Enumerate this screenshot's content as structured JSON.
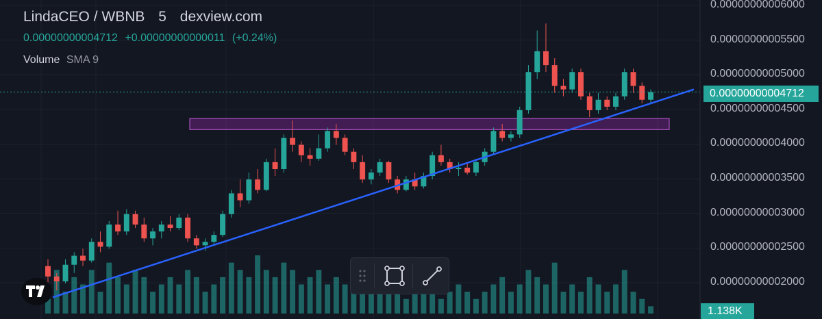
{
  "header": {
    "pair": "LindaCEO / WBNB",
    "interval": "5",
    "source": "dexview.com",
    "last_price": "0.00000000004712",
    "change_abs": "+0.00000000000011",
    "change_pct": "(+0.24%)",
    "indicator_name": "Volume",
    "indicator_param": "SMA 9"
  },
  "price_tag": "0.00000000004712",
  "volume_tag": "1.138K",
  "colors": {
    "background": "#131722",
    "up": "#26a69a",
    "down": "#ef5350",
    "trendline": "#2962ff",
    "zone": "#9c27b0"
  },
  "toolbar": {
    "items": [
      "drag-handle-icon",
      "rectangle-tool-icon",
      "trendline-tool-icon"
    ]
  },
  "chart_data": {
    "type": "candlestick",
    "y_axis_labels": [
      "0.00000000006000",
      "0.00000000005500",
      "0.00000000005000",
      "0.00000000004500",
      "0.00000000004000",
      "0.00000000003500",
      "0.00000000003000",
      "0.00000000002500",
      "0.00000000002000"
    ],
    "ylim": [
      1.8e-11,
      6e-11
    ],
    "last_price": 4.712e-11,
    "grid": true,
    "zone": {
      "low": 4.17e-11,
      "high": 4.33e-11
    },
    "trendline": {
      "from": 1.75e-11,
      "to": 4.75e-11
    },
    "candles": [
      [
        2.2e-11,
        2.3e-11,
        1.95e-11,
        2.05e-11
      ],
      [
        2.05e-11,
        2.1e-11,
        1.85e-11,
        1.98e-11
      ],
      [
        1.98e-11,
        2.3e-11,
        1.95e-11,
        2.22e-11
      ],
      [
        2.22e-11,
        2.4e-11,
        2.1e-11,
        2.35e-11
      ],
      [
        2.35e-11,
        2.45e-11,
        2.2e-11,
        2.28e-11
      ],
      [
        2.28e-11,
        2.6e-11,
        2.25e-11,
        2.55e-11
      ],
      [
        2.55e-11,
        2.7e-11,
        2.4e-11,
        2.48e-11
      ],
      [
        2.48e-11,
        2.85e-11,
        2.45e-11,
        2.8e-11
      ],
      [
        2.8e-11,
        3e-11,
        2.65e-11,
        2.7e-11
      ],
      [
        2.7e-11,
        3.02e-11,
        2.65e-11,
        2.95e-11
      ],
      [
        2.95e-11,
        3e-11,
        2.75e-11,
        2.8e-11
      ],
      [
        2.8e-11,
        2.9e-11,
        2.55e-11,
        2.6e-11
      ],
      [
        2.6e-11,
        2.75e-11,
        2.5e-11,
        2.7e-11
      ],
      [
        2.7e-11,
        2.85e-11,
        2.6e-11,
        2.8e-11
      ],
      [
        2.8e-11,
        2.92e-11,
        2.7e-11,
        2.75e-11
      ],
      [
        2.75e-11,
        2.95e-11,
        2.72e-11,
        2.9e-11
      ],
      [
        2.9e-11,
        2.95e-11,
        2.55e-11,
        2.6e-11
      ],
      [
        2.6e-11,
        2.65e-11,
        2.45e-11,
        2.5e-11
      ],
      [
        2.5e-11,
        2.6e-11,
        2.42e-11,
        2.55e-11
      ],
      [
        2.55e-11,
        2.7e-11,
        2.5e-11,
        2.65e-11
      ],
      [
        2.65e-11,
        3e-11,
        2.62e-11,
        2.95e-11
      ],
      [
        2.95e-11,
        3.3e-11,
        2.9e-11,
        3.25e-11
      ],
      [
        3.25e-11,
        3.45e-11,
        3.05e-11,
        3.15e-11
      ],
      [
        3.15e-11,
        3.55e-11,
        3.1e-11,
        3.45e-11
      ],
      [
        3.45e-11,
        3.6e-11,
        3.25e-11,
        3.3e-11
      ],
      [
        3.3e-11,
        3.75e-11,
        3.28e-11,
        3.7e-11
      ],
      [
        3.7e-11,
        3.9e-11,
        3.5e-11,
        3.6e-11
      ],
      [
        3.6e-11,
        4.1e-11,
        3.55e-11,
        4.05e-11
      ],
      [
        4.05e-11,
        4.3e-11,
        3.85e-11,
        3.95e-11
      ],
      [
        3.95e-11,
        4e-11,
        3.7e-11,
        3.8e-11
      ],
      [
        3.8e-11,
        3.9e-11,
        3.65e-11,
        3.75e-11
      ],
      [
        3.75e-11,
        4.1e-11,
        3.72e-11,
        3.9e-11
      ],
      [
        3.9e-11,
        4.2e-11,
        3.85e-11,
        4.15e-11
      ],
      [
        4.15e-11,
        4.25e-11,
        3.95e-11,
        4.05e-11
      ],
      [
        4.05e-11,
        4.1e-11,
        3.8e-11,
        3.85e-11
      ],
      [
        3.85e-11,
        3.9e-11,
        3.6e-11,
        3.7e-11
      ],
      [
        3.7e-11,
        3.8e-11,
        3.4e-11,
        3.45e-11
      ],
      [
        3.45e-11,
        3.6e-11,
        3.38e-11,
        3.55e-11
      ],
      [
        3.55e-11,
        3.75e-11,
        3.5e-11,
        3.7e-11
      ],
      [
        3.7e-11,
        3.72e-11,
        3.4e-11,
        3.45e-11
      ],
      [
        3.45e-11,
        3.5e-11,
        3.25e-11,
        3.3e-11
      ],
      [
        3.3e-11,
        3.5e-11,
        3.28e-11,
        3.45e-11
      ],
      [
        3.45e-11,
        3.55e-11,
        3.3e-11,
        3.35e-11
      ],
      [
        3.35e-11,
        3.55e-11,
        3.32e-11,
        3.5e-11
      ],
      [
        3.5e-11,
        3.85e-11,
        3.45e-11,
        3.8e-11
      ],
      [
        3.8e-11,
        3.95e-11,
        3.65e-11,
        3.7e-11
      ],
      [
        3.7e-11,
        3.75e-11,
        3.55e-11,
        3.6e-11
      ],
      [
        3.6e-11,
        3.7e-11,
        3.5e-11,
        3.62e-11
      ],
      [
        3.62e-11,
        3.68e-11,
        3.52e-11,
        3.55e-11
      ],
      [
        3.55e-11,
        3.75e-11,
        3.5e-11,
        3.7e-11
      ],
      [
        3.7e-11,
        3.9e-11,
        3.65e-11,
        3.85e-11
      ],
      [
        3.85e-11,
        4.2e-11,
        3.8e-11,
        4.15e-11
      ],
      [
        4.15e-11,
        4.25e-11,
        4e-11,
        4.05e-11
      ],
      [
        4.05e-11,
        4.15e-11,
        4e-11,
        4.1e-11
      ],
      [
        4.1e-11,
        4.5e-11,
        4.05e-11,
        4.45e-11
      ],
      [
        4.45e-11,
        5.1e-11,
        4.4e-11,
        5e-11
      ],
      [
        5e-11,
        5.6e-11,
        4.9e-11,
        5.3e-11
      ],
      [
        5.3e-11,
        5.7e-11,
        5e-11,
        5.1e-11
      ],
      [
        5.1e-11,
        5.2e-11,
        4.7e-11,
        4.8e-11
      ],
      [
        4.8e-11,
        4.9e-11,
        4.65e-11,
        4.75e-11
      ],
      [
        4.75e-11,
        5.05e-11,
        4.7e-11,
        5e-11
      ],
      [
        5e-11,
        5.05e-11,
        4.6e-11,
        4.65e-11
      ],
      [
        4.65e-11,
        4.7e-11,
        4.35e-11,
        4.45e-11
      ],
      [
        4.45e-11,
        4.7e-11,
        4.4e-11,
        4.6e-11
      ],
      [
        4.6e-11,
        4.65e-11,
        4.45e-11,
        4.5e-11
      ],
      [
        4.5e-11,
        4.7e-11,
        4.45e-11,
        4.65e-11
      ],
      [
        4.65e-11,
        5.05e-11,
        4.6e-11,
        5e-11
      ],
      [
        5e-11,
        5.05e-11,
        4.7e-11,
        4.8e-11
      ],
      [
        4.8e-11,
        4.85e-11,
        4.55e-11,
        4.6e-11
      ],
      [
        4.6e-11,
        4.75e-11,
        4.55e-11,
        4.71e-11
      ]
    ],
    "volumes": [
      2,
      6,
      3,
      5,
      4,
      6,
      3,
      7,
      5,
      4,
      6,
      5,
      3,
      4,
      5,
      4,
      6,
      5,
      3,
      4,
      5,
      7,
      6,
      5,
      8,
      6,
      5,
      7,
      6,
      4,
      5,
      6,
      4,
      5,
      4,
      3,
      5,
      4,
      3,
      4,
      3,
      2,
      3,
      4,
      3,
      2,
      3,
      4,
      3,
      2,
      3,
      4,
      5,
      3,
      4,
      6,
      5,
      4,
      7,
      3,
      4,
      3,
      5,
      4,
      3,
      4,
      6,
      3,
      2,
      1
    ]
  }
}
